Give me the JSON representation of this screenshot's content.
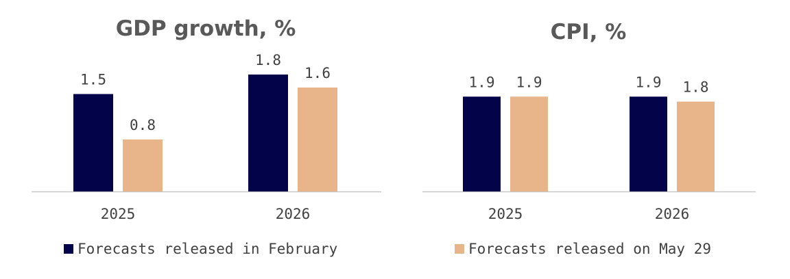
{
  "colors": {
    "february": "#03034a",
    "may29": "#e8b489",
    "axis": "#c8c8c8",
    "text": "#404040",
    "title": "#595959"
  },
  "legend": {
    "february": "Forecasts released in February",
    "may29": "Forecasts released on May 29"
  },
  "chart_data": [
    {
      "type": "bar",
      "title": "GDP growth, %",
      "categories": [
        "2025",
        "2026"
      ],
      "series": [
        {
          "name": "Forecasts released in February",
          "values": [
            1.5,
            1.8
          ]
        },
        {
          "name": "Forecasts released on May 29",
          "values": [
            0.8,
            1.6
          ]
        }
      ],
      "ylim": [
        0,
        2.0
      ],
      "grid": false,
      "legend_position": "bottom"
    },
    {
      "type": "bar",
      "title": "CPI, %",
      "categories": [
        "2025",
        "2026"
      ],
      "series": [
        {
          "name": "Forecasts released in February",
          "values": [
            1.9,
            1.9
          ]
        },
        {
          "name": "Forecasts released on May 29",
          "values": [
            1.9,
            1.8
          ]
        }
      ],
      "ylim": [
        0,
        2.0
      ],
      "grid": false,
      "legend_position": "bottom"
    }
  ]
}
